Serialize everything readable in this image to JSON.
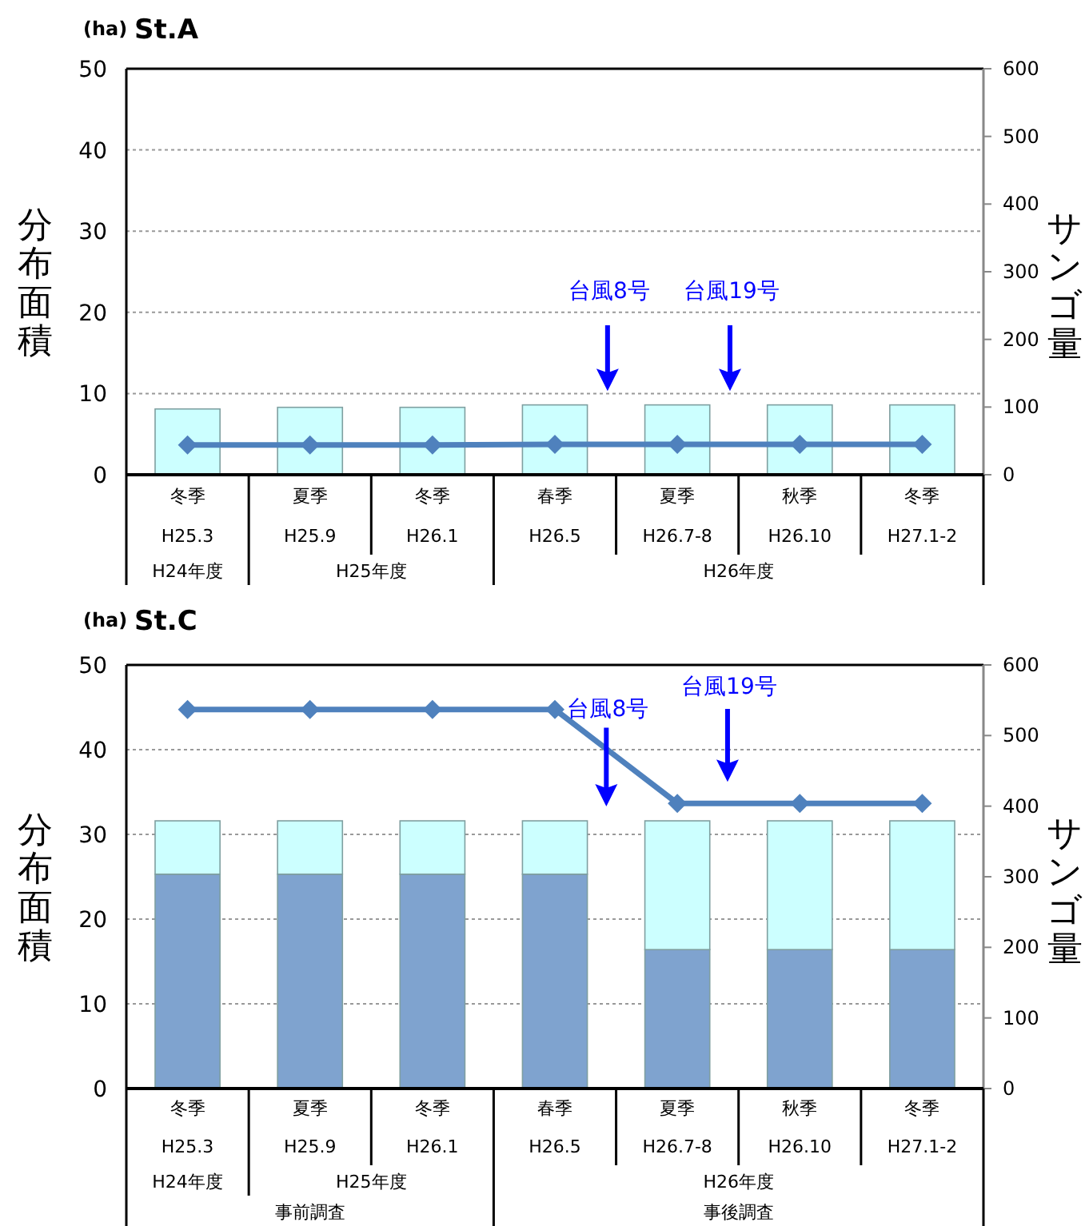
{
  "chart_data": [
    {
      "type": "bar",
      "title": "St.A",
      "ylabel": "分布面積",
      "y2label": "サンゴ量",
      "categories": [
        "冬季\nH25.3",
        "夏季\nH25.9",
        "冬季\nH26.1",
        "春季\nH26.5",
        "夏季\nH26.7-8",
        "秋季\nH26.10",
        "冬季\nH27.1-2"
      ],
      "series": [
        {
          "color": "#ccffff",
          "values": [
            8.1,
            8.3,
            8.3,
            8.6,
            8.6,
            8.6,
            8.6
          ]
        },
        {
          "type": "line",
          "axis": "y2",
          "color": "#4f81bd",
          "marker": "diamond",
          "values": [
            44,
            44,
            44,
            45,
            45,
            45,
            45
          ]
        }
      ],
      "ylim": [
        0,
        50
      ],
      "yticks": [
        0,
        10,
        20,
        30,
        40,
        50
      ],
      "y2lim": [
        0,
        600
      ],
      "y2ticks": [
        0,
        100,
        200,
        300,
        400,
        500,
        600
      ],
      "grid": "y",
      "annotations": [
        "(ha)",
        "台風8号",
        "台風19号",
        "H24年度",
        "H25年度",
        "H26年度"
      ]
    },
    {
      "type": "bar",
      "stacked": true,
      "title": "St.C",
      "ylabel": "分布面積",
      "y2label": "サンゴ量",
      "categories": [
        "冬季\nH25.3",
        "夏季\nH25.9",
        "冬季\nH26.1",
        "春季\nH26.5",
        "夏季\nH26.7-8",
        "秋季\nH26.10",
        "冬季\nH27.1-2"
      ],
      "series": [
        {
          "color": "#7fa3cf",
          "values": [
            25.3,
            25.3,
            25.3,
            25.3,
            16.4,
            16.4,
            16.4
          ]
        },
        {
          "color": "#ccffff",
          "values": [
            6.3,
            6.3,
            6.3,
            6.3,
            15.2,
            15.2,
            15.2
          ]
        },
        {
          "type": "line",
          "axis": "y2",
          "color": "#4f81bd",
          "marker": "diamond",
          "values": [
            537,
            537,
            537,
            537,
            404,
            404,
            404
          ]
        }
      ],
      "ylim": [
        0,
        50
      ],
      "yticks": [
        0,
        10,
        20,
        30,
        40,
        50
      ],
      "y2lim": [
        0,
        600
      ],
      "y2ticks": [
        0,
        100,
        200,
        300,
        400,
        500,
        600
      ],
      "grid": "y",
      "annotations": [
        "(ha)",
        "台風8号",
        "台風19号",
        "H24年度",
        "H25年度",
        "H26年度",
        "事前調査",
        "事後調査"
      ]
    }
  ]
}
